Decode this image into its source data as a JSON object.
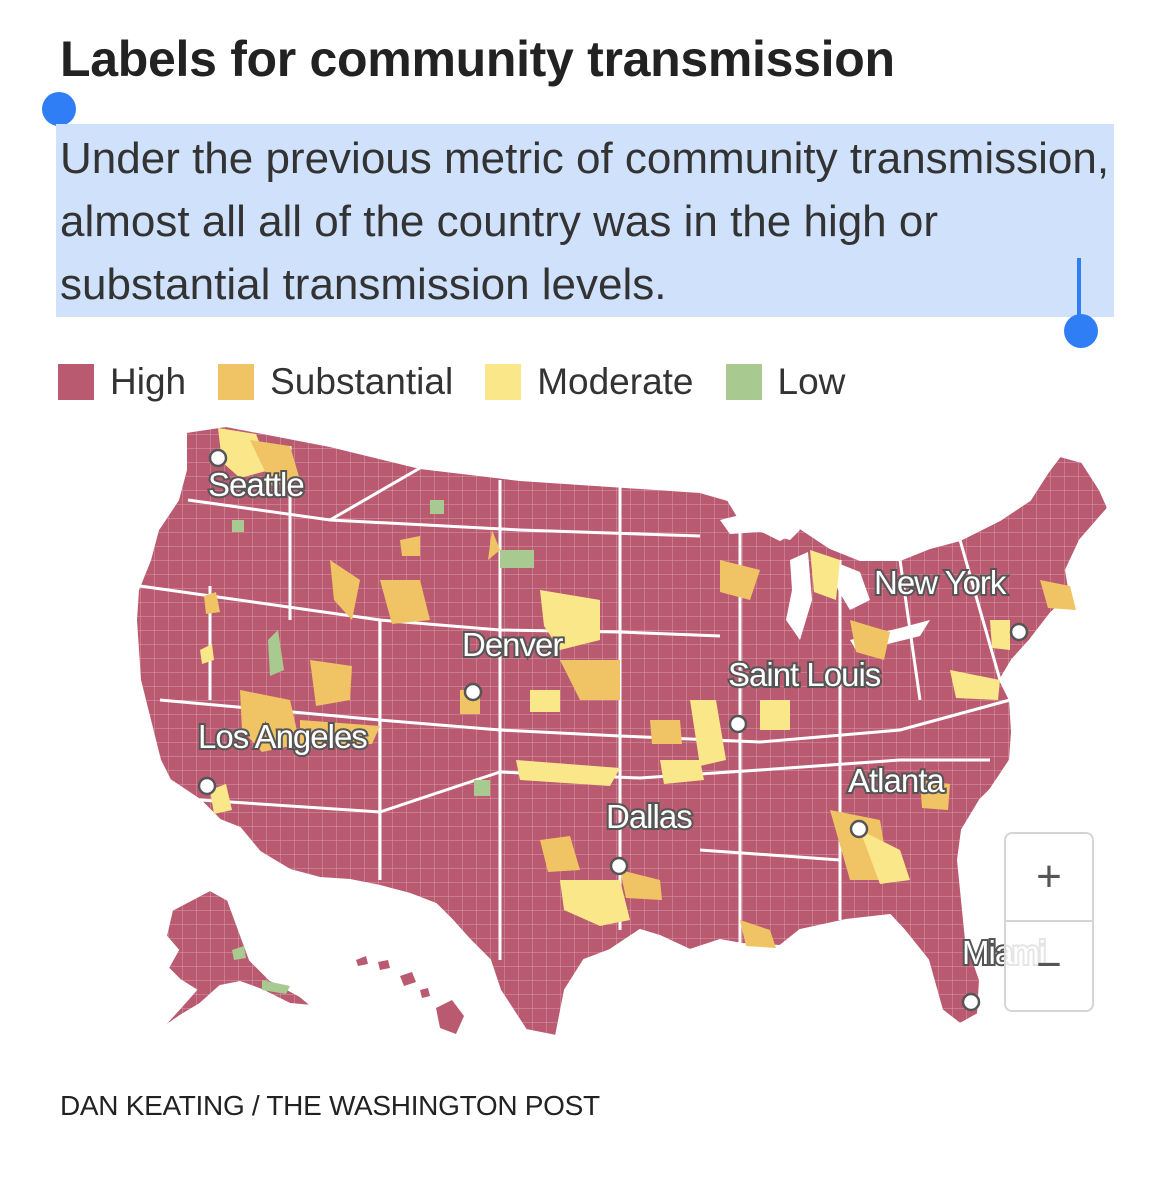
{
  "title": "Labels for community transmission",
  "description": "Under the previous metric of community transmission, almost all all of the country was in the high or substantial transmission levels.",
  "legend": [
    {
      "label": "High",
      "color": "#b95a71"
    },
    {
      "label": "Substantial",
      "color": "#f0c464"
    },
    {
      "label": "Moderate",
      "color": "#f9e78a"
    },
    {
      "label": "Low",
      "color": "#a8c98f"
    }
  ],
  "cities": {
    "seattle": "Seattle",
    "new_york": "New York",
    "denver": "Denver",
    "saint_louis": "Saint Louis",
    "los_angeles": "Los Angeles",
    "atlanta": "Atlanta",
    "dallas": "Dallas",
    "miami": "Miami"
  },
  "zoom": {
    "in_label": "+",
    "out_label": "−"
  },
  "credit": "DAN KEATING / THE WASHINGTON POST",
  "colors": {
    "selection": "#cfe1fb",
    "handle": "#2f7ef5",
    "state_border": "#ffffff"
  }
}
